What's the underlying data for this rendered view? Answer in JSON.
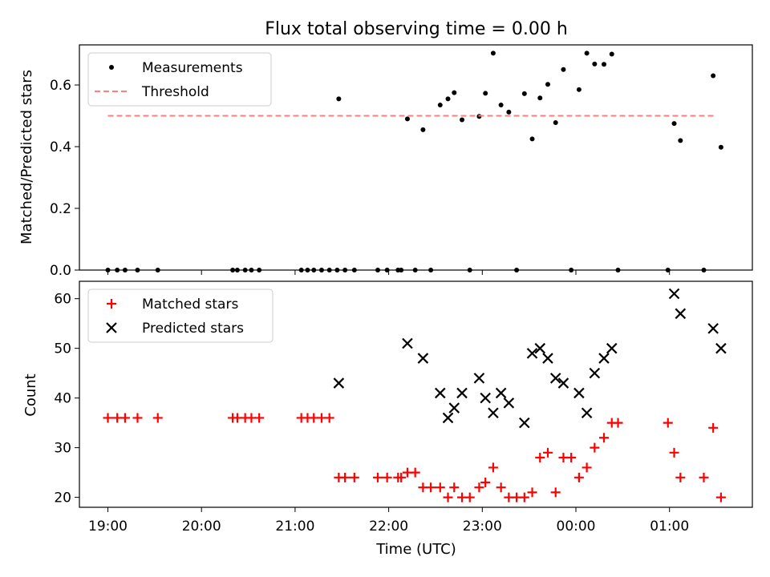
{
  "figure": {
    "title": "Flux total observing time = 0.00 h",
    "xlabel": "Time (UTC)",
    "x_ticks": [
      "19:00",
      "20:00",
      "21:00",
      "22:00",
      "23:00",
      "00:00",
      "01:00"
    ]
  },
  "chart_data": [
    {
      "type": "scatter",
      "panel": "top",
      "ylabel": "Matched/Predicted stars",
      "ylim": [
        0,
        0.73
      ],
      "y_ticks": [
        "0.0",
        "0.2",
        "0.4",
        "0.6"
      ],
      "y_tick_values": [
        0,
        0.2,
        0.4,
        0.6
      ],
      "legend_position": "top-left",
      "grid": false,
      "series": [
        {
          "name": "Measurements",
          "color": "#000000",
          "marker": "dot",
          "points": [
            [
              "19:00",
              0
            ],
            [
              "19:06",
              0
            ],
            [
              "19:11",
              0
            ],
            [
              "19:19",
              0
            ],
            [
              "19:32",
              0
            ],
            [
              "20:20",
              0
            ],
            [
              "20:23",
              0
            ],
            [
              "20:28",
              0
            ],
            [
              "20:32",
              0
            ],
            [
              "20:37",
              0
            ],
            [
              "21:04",
              0
            ],
            [
              "21:08",
              0
            ],
            [
              "21:12",
              0
            ],
            [
              "21:17",
              0
            ],
            [
              "21:22",
              0
            ],
            [
              "21:27",
              0
            ],
            [
              "21:28",
              0.555
            ],
            [
              "21:32",
              0
            ],
            [
              "21:38",
              0
            ],
            [
              "21:53",
              0
            ],
            [
              "21:59",
              0
            ],
            [
              "22:06",
              0
            ],
            [
              "22:08",
              0
            ],
            [
              "22:12",
              0.49
            ],
            [
              "22:17",
              0
            ],
            [
              "22:22",
              0.455
            ],
            [
              "22:27",
              0
            ],
            [
              "22:33",
              0.535
            ],
            [
              "22:38",
              0.555
            ],
            [
              "22:42",
              0.575
            ],
            [
              "22:47",
              0.487
            ],
            [
              "22:52",
              0
            ],
            [
              "22:58",
              0.498
            ],
            [
              "23:02",
              0.573
            ],
            [
              "23:07",
              0.703
            ],
            [
              "23:12",
              0.535
            ],
            [
              "23:17",
              0.512
            ],
            [
              "23:22",
              0
            ],
            [
              "23:27",
              0.572
            ],
            [
              "23:32",
              0.425
            ],
            [
              "23:37",
              0.558
            ],
            [
              "23:42",
              0.602
            ],
            [
              "23:47",
              0.478
            ],
            [
              "23:52",
              0.65
            ],
            [
              "23:57",
              0
            ],
            [
              "00:02",
              0.585
            ],
            [
              "00:07",
              0.703
            ],
            [
              "00:12",
              0.668
            ],
            [
              "00:18",
              0.667
            ],
            [
              "00:23",
              0.7
            ],
            [
              "00:27",
              0
            ],
            [
              "00:59",
              0
            ],
            [
              "01:03",
              0.475
            ],
            [
              "01:07",
              0.42
            ],
            [
              "01:22",
              0
            ],
            [
              "01:28",
              0.63
            ],
            [
              "01:33",
              0.398
            ]
          ]
        },
        {
          "name": "Threshold",
          "color": "#ff7f7f",
          "style": "dashed",
          "x": [
            "19:00",
            "01:30"
          ],
          "y": [
            0.5,
            0.5
          ]
        }
      ]
    },
    {
      "type": "scatter",
      "panel": "bottom",
      "ylabel": "Count",
      "ylim": [
        18,
        63.5
      ],
      "y_ticks": [
        "20",
        "30",
        "40",
        "50",
        "60"
      ],
      "y_tick_values": [
        20,
        30,
        40,
        50,
        60
      ],
      "legend_position": "top-left",
      "grid": false,
      "series": [
        {
          "name": "Matched stars",
          "color": "#ff0000",
          "marker": "plus",
          "points": [
            [
              "19:00",
              36
            ],
            [
              "19:06",
              36
            ],
            [
              "19:11",
              36
            ],
            [
              "19:19",
              36
            ],
            [
              "19:32",
              36
            ],
            [
              "20:20",
              36
            ],
            [
              "20:23",
              36
            ],
            [
              "20:28",
              36
            ],
            [
              "20:32",
              36
            ],
            [
              "20:37",
              36
            ],
            [
              "21:04",
              36
            ],
            [
              "21:08",
              36
            ],
            [
              "21:12",
              36
            ],
            [
              "21:17",
              36
            ],
            [
              "21:22",
              36
            ],
            [
              "21:28",
              24
            ],
            [
              "21:32",
              24
            ],
            [
              "21:38",
              24
            ],
            [
              "21:53",
              24
            ],
            [
              "21:59",
              24
            ],
            [
              "22:06",
              24
            ],
            [
              "22:08",
              24
            ],
            [
              "22:12",
              25
            ],
            [
              "22:17",
              25
            ],
            [
              "22:22",
              22
            ],
            [
              "22:27",
              22
            ],
            [
              "22:33",
              22
            ],
            [
              "22:38",
              20
            ],
            [
              "22:42",
              22
            ],
            [
              "22:47",
              20
            ],
            [
              "22:52",
              20
            ],
            [
              "22:58",
              22
            ],
            [
              "23:02",
              23
            ],
            [
              "23:07",
              26
            ],
            [
              "23:12",
              22
            ],
            [
              "23:17",
              20
            ],
            [
              "23:22",
              20
            ],
            [
              "23:27",
              20
            ],
            [
              "23:32",
              21
            ],
            [
              "23:37",
              28
            ],
            [
              "23:42",
              29
            ],
            [
              "23:47",
              21
            ],
            [
              "23:52",
              28
            ],
            [
              "23:57",
              28
            ],
            [
              "00:02",
              24
            ],
            [
              "00:07",
              26
            ],
            [
              "00:12",
              30
            ],
            [
              "00:18",
              32
            ],
            [
              "00:23",
              35
            ],
            [
              "00:27",
              35
            ],
            [
              "00:59",
              35
            ],
            [
              "01:03",
              29
            ],
            [
              "01:07",
              24
            ],
            [
              "01:22",
              24
            ],
            [
              "01:28",
              34
            ],
            [
              "01:33",
              20
            ]
          ]
        },
        {
          "name": "Predicted stars",
          "color": "#000000",
          "marker": "x",
          "points": [
            [
              "21:28",
              43
            ],
            [
              "22:12",
              51
            ],
            [
              "22:22",
              48
            ],
            [
              "22:33",
              41
            ],
            [
              "22:38",
              36
            ],
            [
              "22:42",
              38
            ],
            [
              "22:47",
              41
            ],
            [
              "22:58",
              44
            ],
            [
              "23:02",
              40
            ],
            [
              "23:07",
              37
            ],
            [
              "23:12",
              41
            ],
            [
              "23:17",
              39
            ],
            [
              "23:27",
              35
            ],
            [
              "23:32",
              49
            ],
            [
              "23:37",
              50
            ],
            [
              "23:42",
              48
            ],
            [
              "23:47",
              44
            ],
            [
              "23:52",
              43
            ],
            [
              "00:02",
              41
            ],
            [
              "00:07",
              37
            ],
            [
              "00:12",
              45
            ],
            [
              "00:18",
              48
            ],
            [
              "00:23",
              50
            ],
            [
              "01:03",
              61
            ],
            [
              "01:07",
              57
            ],
            [
              "01:28",
              54
            ],
            [
              "01:33",
              50
            ]
          ]
        }
      ]
    }
  ]
}
